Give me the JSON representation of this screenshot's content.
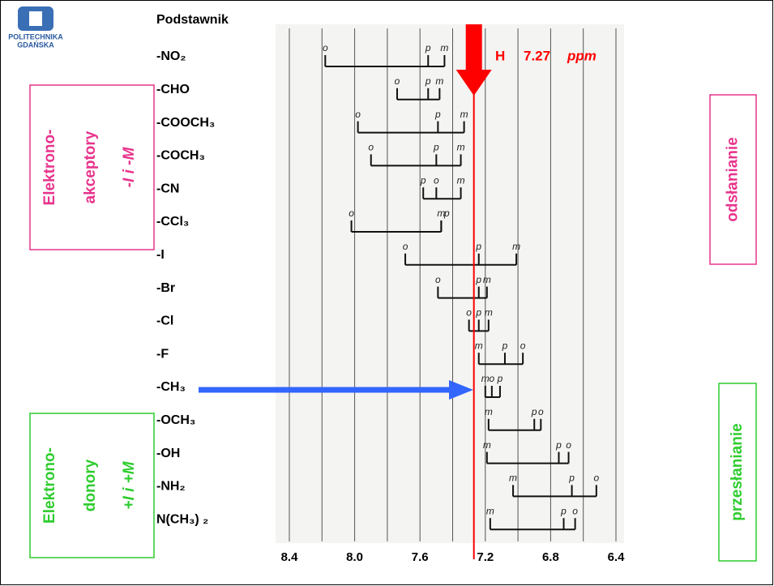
{
  "logo": {
    "line1": "POLITECHNIKA",
    "line2": "GDAŃSKA"
  },
  "chart_data": {
    "type": "shift-diagram",
    "column_header": "Podstawnik",
    "categories": [
      "-NO₂",
      "-CHO",
      "-COOCH₃",
      "-COCH₃",
      "-CN",
      "-CCl₃",
      "-I",
      "-Br",
      "-Cl",
      "-F",
      "-CH₃",
      "-OCH₃",
      "-OH",
      "-NH₂",
      "N(CH₃) ₂"
    ],
    "series": [
      {
        "name": "o",
        "values": [
          8.18,
          7.74,
          7.98,
          7.9,
          7.5,
          8.02,
          7.69,
          7.49,
          7.3,
          6.97,
          7.16,
          6.86,
          6.69,
          6.52,
          6.65
        ]
      },
      {
        "name": "m",
        "values": [
          7.45,
          7.48,
          7.33,
          7.35,
          7.35,
          7.47,
          7.01,
          7.19,
          7.18,
          7.24,
          7.2,
          7.18,
          7.19,
          7.03,
          7.17
        ]
      },
      {
        "name": "p",
        "values": [
          7.55,
          7.55,
          7.49,
          7.5,
          7.58,
          7.47,
          7.24,
          7.24,
          7.24,
          7.08,
          7.11,
          6.9,
          6.75,
          6.67,
          6.72
        ]
      }
    ],
    "xlim": [
      8.4,
      6.4
    ],
    "xticks": [
      8.4,
      {
        "value": 8,
        "label": "8.0"
      },
      7.6,
      7.2,
      6.8,
      6.4
    ],
    "x_gridlines": [
      8.4,
      8.2,
      8.0,
      7.8,
      7.6,
      7.4,
      7.2,
      7.0,
      6.8,
      6.6,
      6.4
    ],
    "reference": {
      "label": "H",
      "value": 7.27,
      "unit": "ppm",
      "color": "#ff0000"
    },
    "groups": [
      {
        "lines": [
          "Elektrono-",
          "akceptory",
          "-I i -M"
        ],
        "color": "#e8338c"
      },
      {
        "lines": [
          "Elektrono-",
          "donory",
          "+I i +M"
        ],
        "color": "#2ecc2e"
      }
    ],
    "regions": [
      {
        "text": "odsłanianie",
        "color": "#e8338c"
      },
      {
        "text": "przesłanianie",
        "color": "#2ecc2e"
      }
    ]
  }
}
